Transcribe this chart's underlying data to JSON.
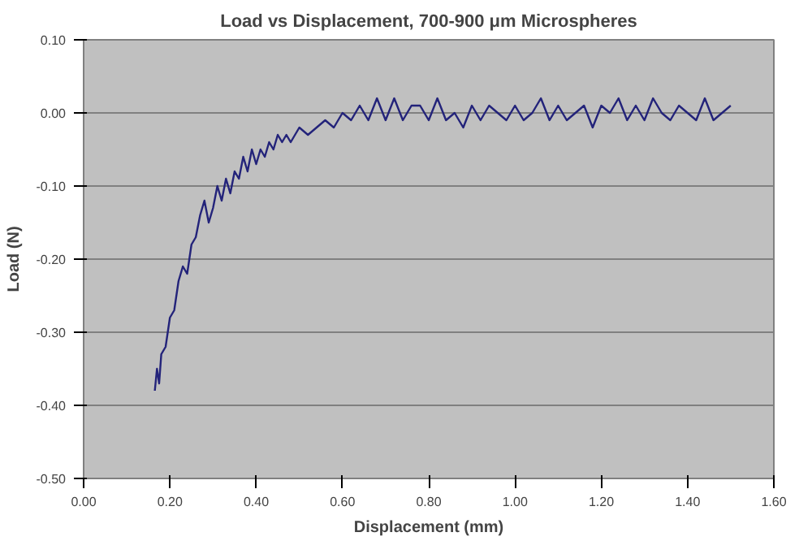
{
  "chart_data": {
    "type": "line",
    "title": "Load vs Displacement, 700-900 μm Microspheres",
    "xlabel": "Displacement (mm)",
    "ylabel": "Load (N)",
    "x": [
      0.165,
      0.17,
      0.175,
      0.18,
      0.19,
      0.2,
      0.21,
      0.22,
      0.23,
      0.24,
      0.25,
      0.26,
      0.27,
      0.28,
      0.29,
      0.3,
      0.31,
      0.32,
      0.33,
      0.34,
      0.35,
      0.36,
      0.37,
      0.38,
      0.39,
      0.4,
      0.41,
      0.42,
      0.43,
      0.44,
      0.45,
      0.46,
      0.47,
      0.48,
      0.5,
      0.52,
      0.54,
      0.56,
      0.58,
      0.6,
      0.62,
      0.64,
      0.66,
      0.68,
      0.7,
      0.72,
      0.74,
      0.76,
      0.78,
      0.8,
      0.82,
      0.84,
      0.86,
      0.88,
      0.9,
      0.92,
      0.94,
      0.96,
      0.98,
      1.0,
      1.02,
      1.04,
      1.06,
      1.08,
      1.1,
      1.12,
      1.14,
      1.16,
      1.18,
      1.2,
      1.22,
      1.24,
      1.26,
      1.28,
      1.3,
      1.32,
      1.34,
      1.36,
      1.38,
      1.4,
      1.42,
      1.44,
      1.46,
      1.48,
      1.5
    ],
    "series": [
      {
        "color": "#23237a",
        "values": [
          -0.38,
          -0.35,
          -0.37,
          -0.33,
          -0.32,
          -0.28,
          -0.27,
          -0.23,
          -0.21,
          -0.22,
          -0.18,
          -0.17,
          -0.14,
          -0.12,
          -0.15,
          -0.13,
          -0.1,
          -0.12,
          -0.09,
          -0.11,
          -0.08,
          -0.09,
          -0.06,
          -0.08,
          -0.05,
          -0.07,
          -0.05,
          -0.06,
          -0.04,
          -0.05,
          -0.03,
          -0.04,
          -0.03,
          -0.04,
          -0.02,
          -0.03,
          -0.02,
          -0.01,
          -0.02,
          0.0,
          -0.01,
          0.01,
          -0.01,
          0.02,
          -0.01,
          0.02,
          -0.01,
          0.01,
          0.01,
          -0.01,
          0.02,
          -0.01,
          0.0,
          -0.02,
          0.01,
          -0.01,
          0.01,
          0.0,
          -0.01,
          0.01,
          -0.01,
          0.0,
          0.02,
          -0.01,
          0.01,
          -0.01,
          0.0,
          0.01,
          -0.02,
          0.01,
          0.0,
          0.02,
          -0.01,
          0.01,
          -0.01,
          0.02,
          0.0,
          -0.01,
          0.01,
          0.0,
          -0.01,
          0.02,
          -0.01,
          0.0,
          0.01
        ]
      }
    ],
    "xlim": [
      0,
      1.6
    ],
    "xticks": [
      {
        "value": 0,
        "label": "0.00"
      },
      {
        "value": 0.2,
        "label": "0.20"
      },
      {
        "value": 0.4,
        "label": "0.40"
      },
      {
        "value": 0.6,
        "label": "0.60"
      },
      {
        "value": 0.8,
        "label": "0.80"
      },
      {
        "value": 1.0,
        "label": "1.00"
      },
      {
        "value": 1.2,
        "label": "1.20"
      },
      {
        "value": 1.4,
        "label": "1.40"
      },
      {
        "value": 1.6,
        "label": "1.60"
      }
    ],
    "ylim": [
      -0.5,
      0.1
    ],
    "yticks": [
      {
        "value": -0.5,
        "label": "-0.50"
      },
      {
        "value": -0.4,
        "label": "-0.40"
      },
      {
        "value": -0.3,
        "label": "-0.30"
      },
      {
        "value": -0.2,
        "label": "-0.20"
      },
      {
        "value": -0.1,
        "label": "-0.10"
      },
      {
        "value": 0,
        "label": "0.00"
      },
      {
        "value": 0.1,
        "label": "0.10"
      }
    ],
    "grid": "y",
    "marker": "none",
    "line_style": "solid"
  }
}
